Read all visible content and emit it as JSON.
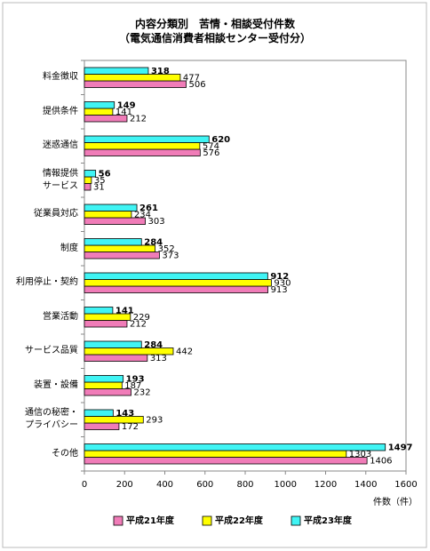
{
  "chart_data": {
    "type": "bar",
    "orientation": "horizontal",
    "title": "内容分類別　苦情・相談受付件数",
    "subtitle": "（電気通信消費者相談センター受付分）",
    "x_label": "件数（件）",
    "categories": [
      "料金徴収",
      "提供条件",
      "迷惑通信",
      "情報提供\nサービス",
      "従業員対応",
      "制度",
      "利用停止・契約",
      "営業活動",
      "サービス品質",
      "装置・設備",
      "通信の秘密・\nプライバシー",
      "その他"
    ],
    "series": [
      {
        "name": "平成21年度",
        "color": "#f07cb8",
        "values": [
          506,
          212,
          576,
          31,
          303,
          373,
          913,
          212,
          313,
          232,
          172,
          1406
        ]
      },
      {
        "name": "平成22年度",
        "color": "#ffff00",
        "values": [
          477,
          141,
          574,
          35,
          234,
          352,
          930,
          229,
          442,
          187,
          293,
          1303
        ]
      },
      {
        "name": "平成23年度",
        "color": "#40f4f4",
        "values": [
          318,
          149,
          620,
          56,
          261,
          284,
          912,
          141,
          284,
          193,
          143,
          1497
        ]
      }
    ],
    "xlim": [
      0,
      1600
    ],
    "xticks": [
      0,
      200,
      400,
      600,
      800,
      1000,
      1200,
      1400,
      1600
    ],
    "legend": "bottom"
  }
}
